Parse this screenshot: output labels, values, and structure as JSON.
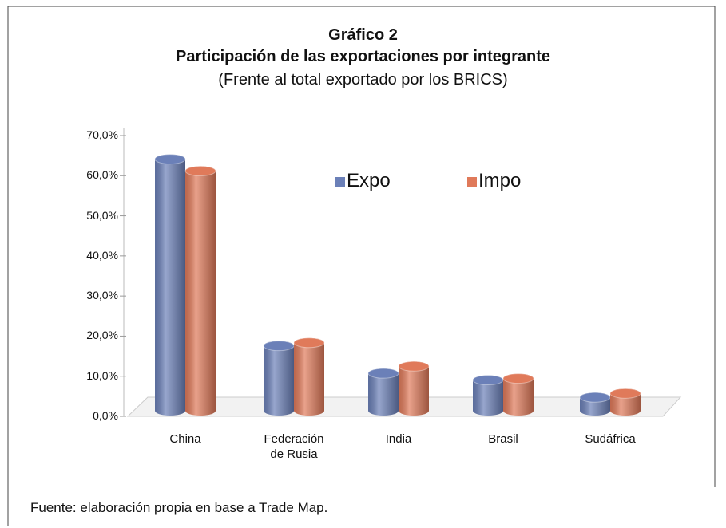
{
  "chart_data": {
    "type": "bar",
    "title": "Gráfico 2",
    "subtitle": "Participación de las exportaciones por integrante",
    "subtitle2": "(Frente al total exportado por los BRICS)",
    "categories": [
      "China",
      "Federación de Rusia",
      "India",
      "Brasil",
      "Sudáfrica"
    ],
    "series": [
      {
        "name": "Expo",
        "color": "#6b80b8",
        "values": [
          64,
          16.5,
          9.5,
          7.8,
          3.4
        ]
      },
      {
        "name": "Impo",
        "color": "#e07a5a",
        "values": [
          61,
          17.3,
          11.3,
          8.2,
          4.4
        ]
      }
    ],
    "ylim": [
      0,
      70
    ],
    "yticks": [
      {
        "value": 0,
        "label": "0,0%"
      },
      {
        "value": 10,
        "label": "10,0%"
      },
      {
        "value": 20,
        "label": "20,0%"
      },
      {
        "value": 30,
        "label": "30,0%"
      },
      {
        "value": 40,
        "label": "40,0%"
      },
      {
        "value": 50,
        "label": "50,0%"
      },
      {
        "value": 60,
        "label": "60,0%"
      },
      {
        "value": 70,
        "label": "70,0%"
      }
    ],
    "legend": "top-right",
    "source": "Fuente: elaboración propia en base a Trade Map."
  }
}
